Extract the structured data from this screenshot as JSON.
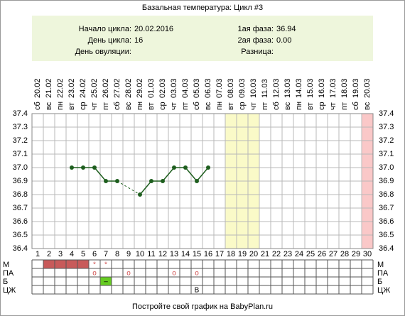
{
  "chart_data": {
    "type": "line",
    "title": "Базальная температура: Цикл #3",
    "info": {
      "left": [
        {
          "label": "Начало цикла:",
          "value": "20.02.2016"
        },
        {
          "label": "День цикла:",
          "value": "16"
        },
        {
          "label": "День овуляции:",
          "value": null
        }
      ],
      "right": [
        {
          "label": "1ая фаза:",
          "value": "36.94"
        },
        {
          "label": "2ая фаза:",
          "value": "0.00"
        },
        {
          "label": "Разница:",
          "value": null
        }
      ]
    },
    "x": [
      1,
      2,
      3,
      4,
      5,
      6,
      7,
      8,
      9,
      10,
      11,
      12,
      13,
      14,
      15,
      16,
      17,
      18,
      19,
      20,
      21,
      22,
      23,
      24,
      25,
      26,
      27,
      28,
      29,
      30
    ],
    "xlim": [
      0.5,
      30.5
    ],
    "weekdays": [
      "сб",
      "вс",
      "пн",
      "вт",
      "ср",
      "чт",
      "пт",
      "сб",
      "вс",
      "пн",
      "вт",
      "ср",
      "чт",
      "пт",
      "сб",
      "вс",
      "пн",
      "вт",
      "ср",
      "чт",
      "пт",
      "сб",
      "вс",
      "пн",
      "вт",
      "ср",
      "чт",
      "пт",
      "сб",
      "вс"
    ],
    "dates": [
      "20.02",
      "21.02",
      "22.02",
      "23.02",
      "24.02",
      "25.02",
      "26.02",
      "27.02",
      "28.02",
      "29.02",
      "01.03",
      "02.03",
      "03.03",
      "04.03",
      "05.03",
      "06.03",
      "07.03",
      "08.03",
      "09.03",
      "10.03",
      "11.03",
      "12.03",
      "13.03",
      "14.03",
      "15.03",
      "16.03",
      "17.03",
      "18.03",
      "19.03",
      "20.03"
    ],
    "values": [
      null,
      null,
      null,
      37.0,
      37.0,
      37.0,
      36.9,
      36.9,
      null,
      36.8,
      36.9,
      36.9,
      37.0,
      37.0,
      36.9,
      37.0,
      null,
      null,
      null,
      null,
      null,
      null,
      null,
      null,
      null,
      null,
      null,
      null,
      null,
      null
    ],
    "color": "#1e5e1e",
    "ylim": [
      36.4,
      37.4
    ],
    "yticks": [
      36.4,
      36.5,
      36.6,
      36.7,
      36.8,
      36.9,
      {
        "value": 37.0,
        "label": "37.0"
      },
      37.1,
      37.2,
      37.3,
      37.4
    ],
    "grid": true,
    "highlight_days": [
      {
        "days": [
          18,
          19,
          20
        ],
        "color": "#fafac8"
      },
      {
        "days": [
          30
        ],
        "color": "#fac8c8"
      }
    ],
    "rows": [
      {
        "label": "М",
        "fill": {
          "days": [
            2,
            3,
            4,
            5
          ],
          "color": "#c85a5a"
        },
        "marks": [
          {
            "day": 6,
            "text": "*"
          },
          {
            "day": 7,
            "text": "*"
          }
        ],
        "mark_color": "#d05050"
      },
      {
        "label": "ПА",
        "marks": [
          {
            "day": 6,
            "text": "o"
          },
          {
            "day": 9,
            "text": "o"
          },
          {
            "day": 13,
            "text": "o"
          },
          {
            "day": 15,
            "text": "o"
          }
        ],
        "mark_color": "#d05050"
      },
      {
        "label": "Б",
        "fill": {
          "days": [
            7
          ],
          "color": "#66cc22"
        },
        "marks": [
          {
            "day": 7,
            "text": "–"
          }
        ],
        "mark_color": "#000000"
      },
      {
        "label": "ЦЖ",
        "marks": [
          {
            "day": 15,
            "text": "В"
          }
        ],
        "mark_color": "#000000"
      }
    ],
    "footer": "Постройте свой график на BabyPlan.ru"
  }
}
